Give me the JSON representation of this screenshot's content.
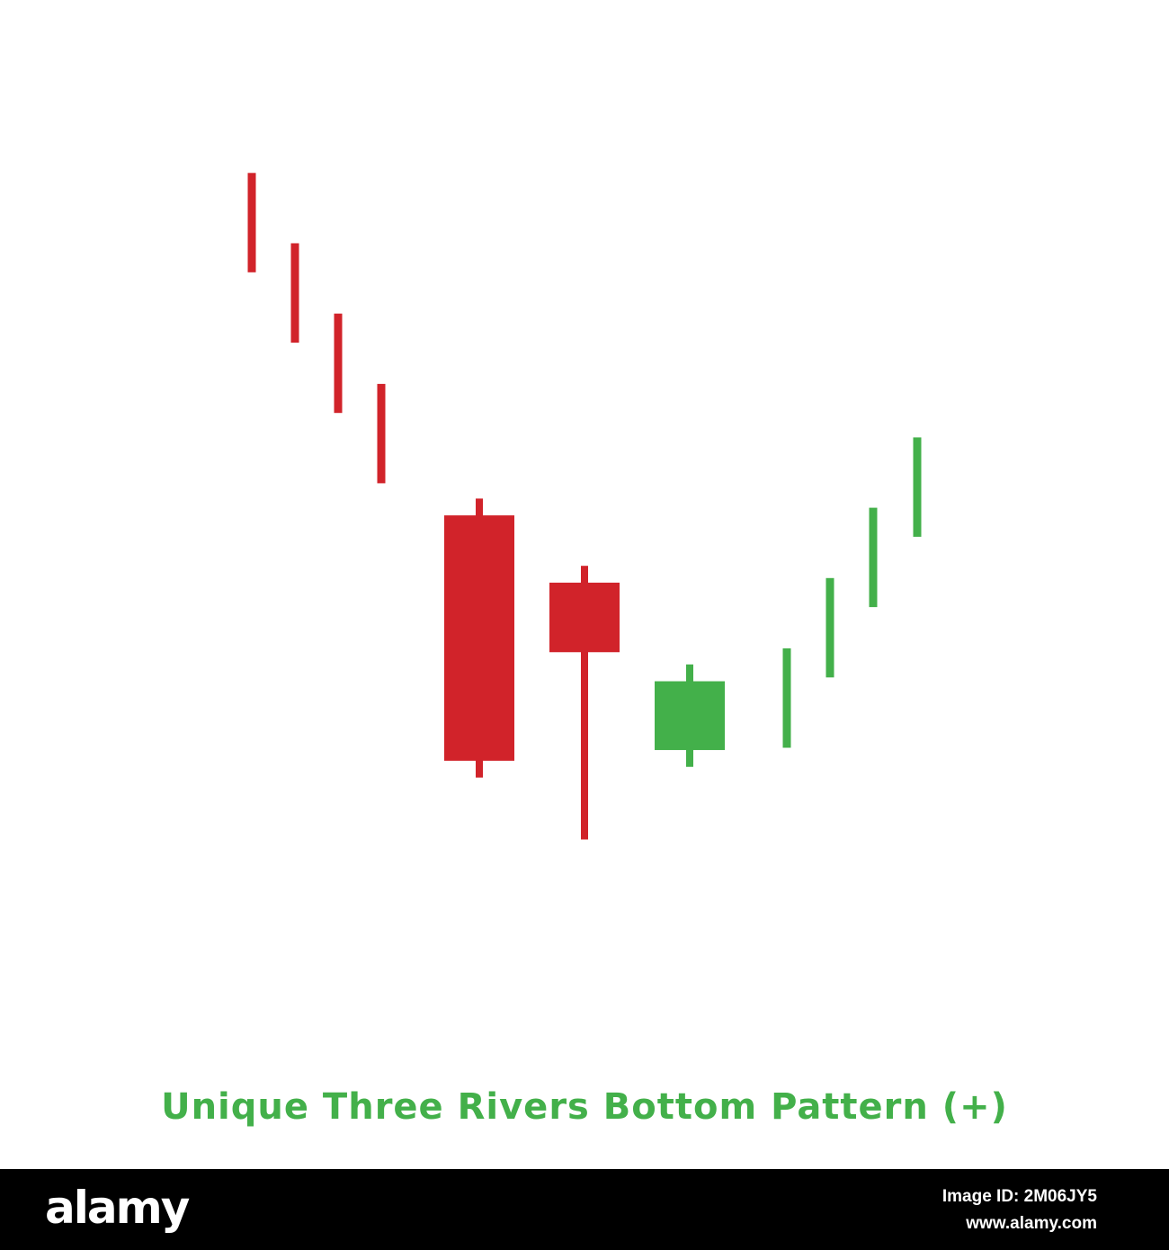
{
  "chart_data": {
    "type": "candlestick",
    "title": "Unique Three Rivers Bottom Pattern (+)",
    "xlabel": "",
    "ylabel": "",
    "axes_visible": false,
    "grid": false,
    "ylim": [
      0,
      100
    ],
    "colors": {
      "bearish": "#d1232a",
      "bullish": "#43b04a",
      "title": "#43b04a"
    },
    "candles": [
      {
        "index": 1,
        "direction": "down",
        "style": "line",
        "open": 96.2,
        "close": 83.2,
        "high": 96.2,
        "low": 83.2
      },
      {
        "index": 2,
        "direction": "down",
        "style": "line",
        "open": 87.0,
        "close": 74.0,
        "high": 87.0,
        "low": 74.0
      },
      {
        "index": 3,
        "direction": "down",
        "style": "line",
        "open": 77.8,
        "close": 64.8,
        "high": 77.8,
        "low": 64.8
      },
      {
        "index": 4,
        "direction": "down",
        "style": "line",
        "open": 68.6,
        "close": 55.6,
        "high": 68.6,
        "low": 55.6
      },
      {
        "index": 5,
        "direction": "down",
        "style": "candle",
        "open": 51.4,
        "close": 19.3,
        "high": 53.6,
        "low": 17.1
      },
      {
        "index": 6,
        "direction": "down",
        "style": "candle",
        "open": 42.6,
        "close": 33.5,
        "high": 44.8,
        "low": 9.0
      },
      {
        "index": 7,
        "direction": "up",
        "style": "candle",
        "open": 20.7,
        "close": 29.7,
        "high": 31.9,
        "low": 18.5
      },
      {
        "index": 8,
        "direction": "up",
        "style": "line",
        "open": 21.0,
        "close": 34.0,
        "high": 34.0,
        "low": 21.0
      },
      {
        "index": 9,
        "direction": "up",
        "style": "line",
        "open": 30.2,
        "close": 43.2,
        "high": 43.2,
        "low": 30.2
      },
      {
        "index": 10,
        "direction": "up",
        "style": "line",
        "open": 39.4,
        "close": 52.4,
        "high": 52.4,
        "low": 39.4
      },
      {
        "index": 11,
        "direction": "up",
        "style": "line",
        "open": 48.6,
        "close": 61.6,
        "high": 61.6,
        "low": 48.6
      }
    ]
  },
  "footer": {
    "brand": "alamy",
    "image_id": "Image ID: 2M06JY5",
    "url": "www.alamy.com"
  }
}
